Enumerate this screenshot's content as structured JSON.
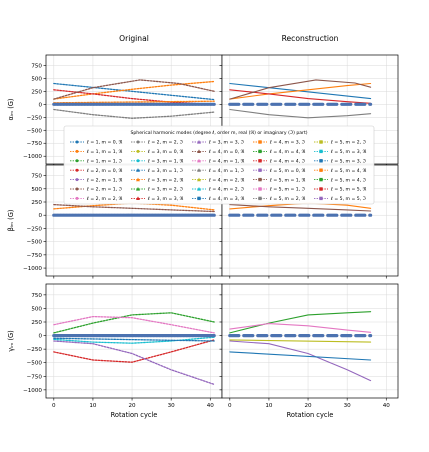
{
  "chart_data": {
    "type": "line",
    "title_left": "Original",
    "title_right": "Reconstruction",
    "xlabel": "Rotation cycle",
    "x_ticks": [
      "0",
      "10",
      "20",
      "30",
      "40"
    ],
    "y_ticks": [
      "750",
      "500",
      "250",
      "0",
      "−250",
      "−500",
      "−750",
      "−1000"
    ],
    "xlim_original": [
      -2,
      43
    ],
    "xlim_reconstruction": [
      -2,
      43
    ],
    "ylim": [
      -1150,
      950
    ],
    "grid": true,
    "legend_title": "Spherical harmonic modes (degree ℓ, order m, real (ℜ) or imaginary (ℑ) part)",
    "legend_entries": [
      "ℓ = 1, m = 0, ℜ",
      "ℓ = 1, m = 1, ℜ",
      "ℓ = 1, m = 1, ℑ",
      "ℓ = 2, m = 0, ℜ",
      "ℓ = 2, m = 1, ℜ",
      "ℓ = 2, m = 1, ℑ",
      "ℓ = 2, m = 2, ℜ",
      "ℓ = 2, m = 2, ℑ",
      "ℓ = 3, m = 0, ℜ",
      "ℓ = 3, m = 1, ℜ",
      "ℓ = 3, m = 1, ℑ",
      "ℓ = 3, m = 2, ℜ",
      "ℓ = 3, m = 2, ℑ",
      "ℓ = 3, m = 3, ℜ",
      "ℓ = 3, m = 3, ℑ",
      "ℓ = 4, m = 0, ℜ",
      "ℓ = 4, m = 1, ℜ",
      "ℓ = 4, m = 1, ℑ",
      "ℓ = 4, m = 2, ℜ",
      "ℓ = 4, m = 2, ℑ",
      "ℓ = 4, m = 3, ℜ",
      "ℓ = 4, m = 3, ℑ",
      "ℓ = 4, m = 4, ℜ",
      "ℓ = 4, m = 4, ℑ",
      "ℓ = 5, m = 0, ℜ",
      "ℓ = 5, m = 1, ℜ",
      "ℓ = 5, m = 1, ℑ",
      "ℓ = 5, m = 2, ℜ",
      "ℓ = 5, m = 2, ℑ",
      "ℓ = 5, m = 3, ℜ",
      "ℓ = 5, m = 3, ℑ",
      "ℓ = 5, m = 4, ℜ",
      "ℓ = 5, m = 4, ℑ",
      "ℓ = 5, m = 5, ℜ",
      "ℓ = 5, m = 5, ℑ"
    ],
    "legend_colors": [
      "#1f77b4",
      "#ff7f0e",
      "#2ca02c",
      "#d62728",
      "#9467bd",
      "#8c564b",
      "#e377c2",
      "#7f7f7f",
      "#bcbd22",
      "#17becf",
      "#1f77b4",
      "#ff7f0e",
      "#2ca02c",
      "#d62728",
      "#9467bd",
      "#8c564b",
      "#e377c2",
      "#7f7f7f",
      "#bcbd22",
      "#17becf",
      "#1f77b4",
      "#ff7f0e",
      "#2ca02c",
      "#d62728",
      "#9467bd",
      "#8c564b",
      "#e377c2",
      "#7f7f7f",
      "#bcbd22",
      "#17becf",
      "#1f77b4",
      "#ff7f0e",
      "#2ca02c",
      "#d62728",
      "#9467bd"
    ],
    "legend_markers": [
      "dot",
      "dot",
      "dot",
      "dot",
      "dot",
      "dot",
      "dot",
      "dot",
      "dot",
      "dot",
      "tri",
      "tri",
      "tri",
      "tri",
      "tri",
      "tri",
      "tri",
      "tri",
      "tri",
      "tri",
      "sq",
      "sq",
      "sq",
      "sq",
      "sq",
      "sq",
      "sq",
      "sq",
      "sq",
      "sq",
      "sq",
      "sq",
      "sq",
      "sq",
      "sq"
    ],
    "panels": [
      {
        "ylabel": "αₗₘ (G)",
        "original": [
          {
            "color": "#1f77b4",
            "x": [
              0,
              41
            ],
            "y": [
              400,
              90
            ]
          },
          {
            "color": "#ff7f0e",
            "x": [
              0,
              10,
              20,
              30,
              41
            ],
            "y": [
              100,
              200,
              290,
              370,
              440
            ]
          },
          {
            "color": "#d62728",
            "x": [
              0,
              10,
              20,
              30,
              41
            ],
            "y": [
              280,
              200,
              110,
              40,
              0
            ]
          },
          {
            "color": "#8c564b",
            "x": [
              0,
              10,
              22,
              32,
              41
            ],
            "y": [
              100,
              320,
              470,
              400,
              250
            ]
          },
          {
            "color": "#7f7f7f",
            "x": [
              0,
              10,
              20,
              30,
              41
            ],
            "y": [
              -100,
              -200,
              -270,
              -230,
              -150
            ]
          },
          {
            "color": "#ff7f0e",
            "x": [
              0,
              41
            ],
            "y": [
              30,
              60
            ]
          },
          {
            "color": "#4c72b0",
            "x": [
              0,
              41
            ],
            "y": [
              0,
              0
            ]
          }
        ],
        "reconstruction": [
          {
            "color": "#1f77b4",
            "x": [
              0,
              36
            ],
            "y": [
              400,
              110
            ]
          },
          {
            "color": "#ff7f0e",
            "x": [
              0,
              10,
              20,
              30,
              36
            ],
            "y": [
              100,
              200,
              280,
              360,
              400
            ]
          },
          {
            "color": "#d62728",
            "x": [
              0,
              10,
              20,
              30,
              36
            ],
            "y": [
              280,
              200,
              110,
              50,
              20
            ]
          },
          {
            "color": "#8c564b",
            "x": [
              0,
              10,
              22,
              32,
              36
            ],
            "y": [
              100,
              320,
              470,
              410,
              330
            ]
          },
          {
            "color": "#7f7f7f",
            "x": [
              0,
              10,
              20,
              30,
              36
            ],
            "y": [
              -100,
              -200,
              -260,
              -220,
              -180
            ]
          },
          {
            "color": "#4c72b0",
            "x": [
              0,
              36
            ],
            "y": [
              0,
              0
            ]
          }
        ]
      },
      {
        "ylabel": "βₗₘ (G)",
        "original": [
          {
            "color": "#ff7f0e",
            "x": [
              0,
              10,
              20,
              30,
              41
            ],
            "y": [
              120,
              180,
              230,
              190,
              100
            ]
          },
          {
            "color": "#8c564b",
            "x": [
              0,
              10,
              20,
              30,
              41
            ],
            "y": [
              200,
              160,
              130,
              100,
              70
            ]
          },
          {
            "color": "#4c72b0",
            "x": [
              0,
              41
            ],
            "y": [
              0,
              0
            ]
          }
        ],
        "reconstruction": [
          {
            "color": "#ff7f0e",
            "x": [
              0,
              10,
              20,
              30,
              36
            ],
            "y": [
              120,
              180,
              230,
              190,
              130
            ]
          },
          {
            "color": "#8c564b",
            "x": [
              0,
              10,
              20,
              30,
              36
            ],
            "y": [
              200,
              160,
              130,
              100,
              80
            ]
          },
          {
            "color": "#4c72b0",
            "x": [
              0,
              36
            ],
            "y": [
              0,
              0
            ]
          }
        ]
      },
      {
        "ylabel": "γₗₘ (G)",
        "original": [
          {
            "color": "#2ca02c",
            "x": [
              0,
              10,
              20,
              30,
              41
            ],
            "y": [
              50,
              230,
              380,
              420,
              250
            ]
          },
          {
            "color": "#e377c2",
            "x": [
              0,
              10,
              20,
              30,
              41
            ],
            "y": [
              200,
              350,
              330,
              200,
              50
            ]
          },
          {
            "color": "#d62728",
            "x": [
              0,
              10,
              20,
              30,
              41
            ],
            "y": [
              -300,
              -450,
              -490,
              -300,
              -80
            ]
          },
          {
            "color": "#9467bd",
            "x": [
              0,
              10,
              20,
              30,
              41
            ],
            "y": [
              -100,
              -150,
              -330,
              -630,
              -900
            ]
          },
          {
            "color": "#17becf",
            "x": [
              0,
              10,
              20,
              30,
              41
            ],
            "y": [
              -70,
              -120,
              -140,
              -100,
              -30
            ]
          },
          {
            "color": "#1f77b4",
            "x": [
              0,
              41
            ],
            "y": [
              -50,
              -100
            ]
          },
          {
            "color": "#4c72b0",
            "x": [
              0,
              41
            ],
            "y": [
              0,
              0
            ]
          }
        ],
        "reconstruction": [
          {
            "color": "#2ca02c",
            "x": [
              0,
              10,
              20,
              30,
              36
            ],
            "y": [
              50,
              230,
              380,
              420,
              440
            ]
          },
          {
            "color": "#e377c2",
            "x": [
              0,
              10,
              20,
              30,
              36
            ],
            "y": [
              120,
              220,
              180,
              100,
              60
            ]
          },
          {
            "color": "#9467bd",
            "x": [
              0,
              10,
              20,
              30,
              36
            ],
            "y": [
              -100,
              -150,
              -330,
              -630,
              -830
            ]
          },
          {
            "color": "#1f77b4",
            "x": [
              0,
              36
            ],
            "y": [
              -300,
              -450
            ]
          },
          {
            "color": "#bcbd22",
            "x": [
              0,
              36
            ],
            "y": [
              -80,
              -120
            ]
          },
          {
            "color": "#4c72b0",
            "x": [
              0,
              36
            ],
            "y": [
              0,
              0
            ]
          }
        ]
      }
    ]
  }
}
